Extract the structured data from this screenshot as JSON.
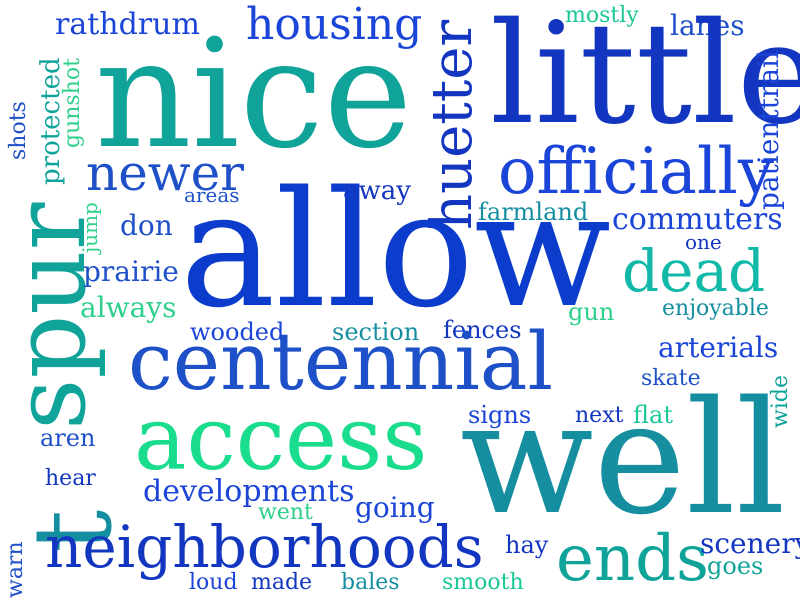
{
  "palette": {
    "deep_blue": "#0a2fd6",
    "blue": "#1a45d8",
    "royal": "#1e50c8",
    "teal": "#0fa59a",
    "teal_dark": "#158fa0",
    "mint": "#19dc8c",
    "green": "#2ed08a",
    "cyan": "#12b8a8"
  },
  "words": [
    "rathdrum",
    "housing",
    "mostly",
    "lanes",
    "nice",
    "little",
    "huetter",
    "patienttrail",
    "protected",
    "gunshot",
    "shots",
    "newer",
    "officially",
    "spur",
    "allow",
    "areas",
    "away",
    "farmland",
    "commuters",
    "jump",
    "don",
    "one",
    "prairie",
    "dead",
    "always",
    "gun",
    "enjoyable",
    "wooded",
    "section",
    "fences",
    "centennial",
    "arterials",
    "skate",
    "access",
    "signs",
    "next",
    "flat",
    "wide",
    "aren",
    "well",
    "hear",
    "t",
    "developments",
    "going",
    "went",
    "neighborhoods",
    "hay",
    "ends",
    "scenery",
    "warn",
    "loud",
    "made",
    "bales",
    "smooth",
    "goes"
  ]
}
